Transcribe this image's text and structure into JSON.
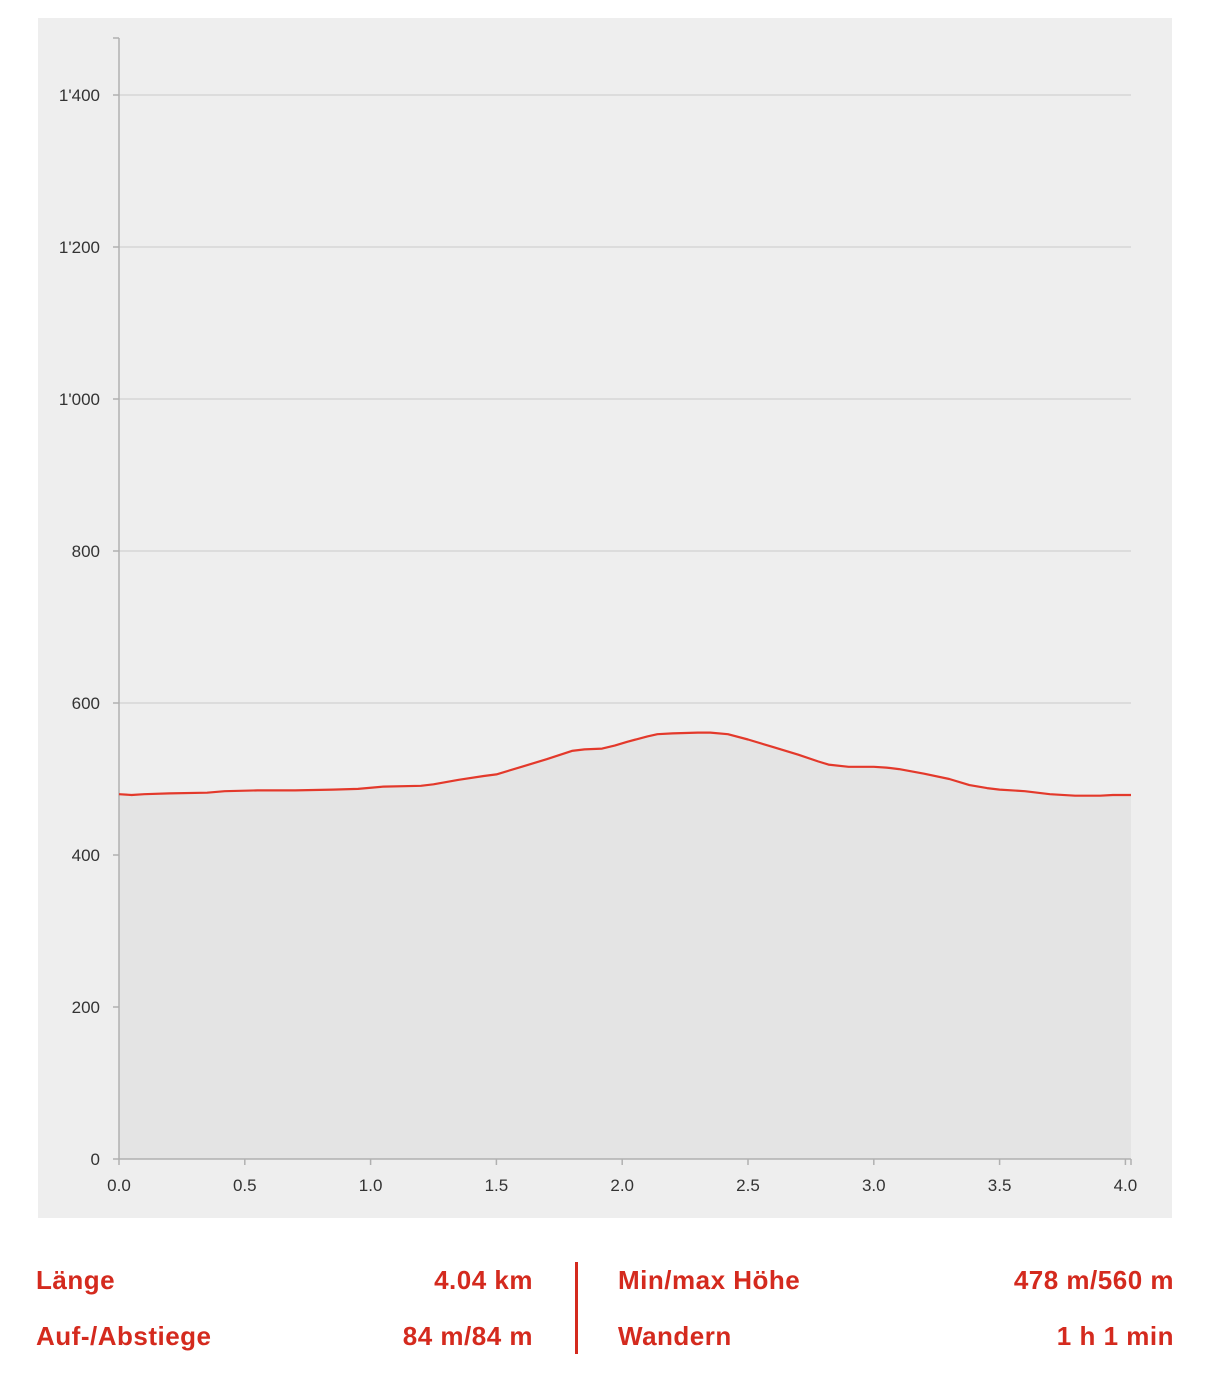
{
  "chart_data": {
    "type": "area",
    "title": "",
    "xlabel": "",
    "ylabel": "",
    "xlim": [
      0,
      4.04
    ],
    "ylim": [
      0,
      1470
    ],
    "x_ticks": [
      "0.0",
      "0.5",
      "1.0",
      "1.5",
      "2.0",
      "2.5",
      "3.0",
      "3.5",
      "4.0"
    ],
    "y_ticks": [
      "0",
      "200",
      "400",
      "600",
      "800",
      "1'000",
      "1'200",
      "1'400"
    ],
    "grid": true,
    "colors": {
      "line": "#e3392b",
      "fill": "#e4e4e4",
      "background": "#eeeeee",
      "grid": "#d5d5d5",
      "axis": "#b0b0b0"
    },
    "series": [
      {
        "x": [
          0.0,
          0.05,
          0.1,
          0.2,
          0.35,
          0.42,
          0.55,
          0.7,
          0.85,
          0.95,
          1.05,
          1.2,
          1.25,
          1.35,
          1.45,
          1.5,
          1.6,
          1.7,
          1.8,
          1.85,
          1.92,
          1.97,
          2.02,
          2.1,
          2.14,
          2.2,
          2.3,
          2.35,
          2.42,
          2.5,
          2.6,
          2.7,
          2.78,
          2.82,
          2.9,
          3.0,
          3.05,
          3.1,
          3.2,
          3.3,
          3.38,
          3.45,
          3.5,
          3.6,
          3.7,
          3.8,
          3.9,
          3.95,
          4.04
        ],
        "y": [
          480,
          479,
          480,
          481,
          482,
          484,
          485,
          485,
          486,
          487,
          490,
          491,
          493,
          499,
          504,
          506,
          516,
          526,
          537,
          539,
          540,
          544,
          549,
          556,
          559,
          560,
          561,
          561,
          559,
          552,
          542,
          532,
          523,
          519,
          516,
          516,
          515,
          513,
          507,
          500,
          492,
          488,
          486,
          484,
          480,
          478,
          478,
          479,
          479
        ]
      }
    ]
  },
  "stats": {
    "length_label": "Länge",
    "length_value": "4.04 km",
    "ascent_label": "Auf-/Abstiege",
    "ascent_value": "84 m/84 m",
    "altitude_label": "Min/max Höhe",
    "altitude_value": "478 m/560 m",
    "hiking_label": "Wandern",
    "hiking_value": "1 h 1 min"
  }
}
